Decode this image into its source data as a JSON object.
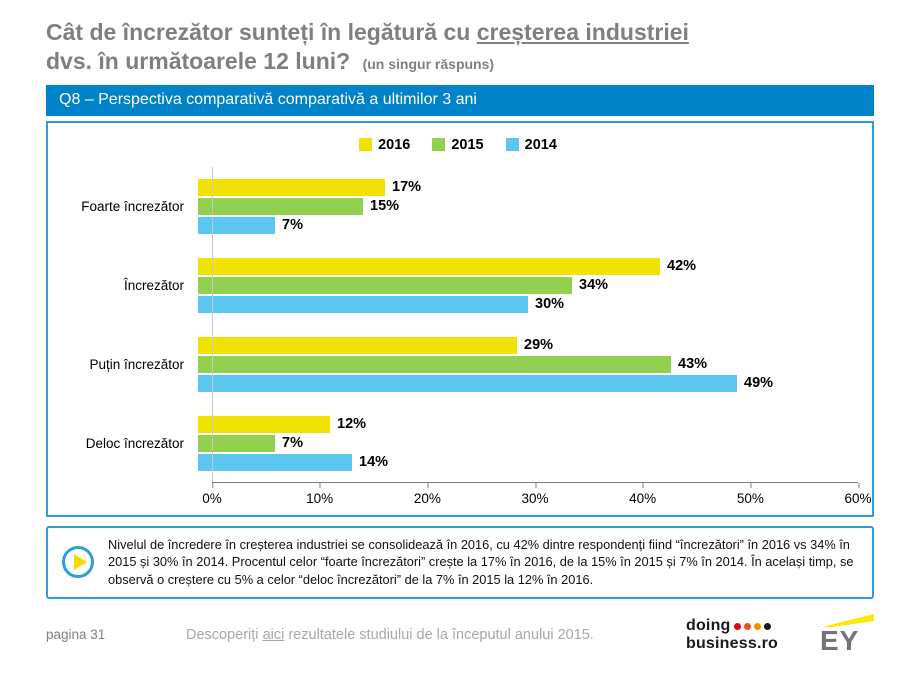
{
  "header": {
    "title_part1": "Cât de încrezător sunteți în legătură cu ",
    "title_underlined": "creșterea industriei",
    "title_part2": "dvs. în următoarele 12 luni?",
    "title_note": "(un singur răspuns)",
    "banner": "Q8 – Perspectiva comparativă comparativă a ultimilor 3 ani"
  },
  "chart_data": {
    "type": "bar",
    "orientation": "horizontal",
    "title": "",
    "categories": [
      "Foarte încrezător",
      "Încrezător",
      "Puțin încrezător",
      "Deloc încrezător"
    ],
    "series": [
      {
        "name": "2016",
        "color": "#F2E203",
        "values": [
          17,
          42,
          29,
          12
        ]
      },
      {
        "name": "2015",
        "color": "#92D050",
        "values": [
          15,
          34,
          43,
          7
        ]
      },
      {
        "name": "2014",
        "color": "#5BC6F0",
        "values": [
          7,
          30,
          49,
          14
        ]
      }
    ],
    "x_ticks": [
      "0%",
      "10%",
      "20%",
      "30%",
      "40%",
      "50%",
      "60%"
    ],
    "xlim": [
      0,
      60
    ],
    "value_suffix": "%",
    "legend_position": "top",
    "grid": false
  },
  "callout": {
    "text": "Nivelul de încredere în creșterea industriei se consolidează în 2016, cu 42% dintre respondenți fiind “încrezători” în 2016 vs 34% în 2015 și 30% în 2014. Procentul celor “foarte încrezători” crește la 17% în 2016, de la 15% în 2015 și 7% în 2014. În același timp, se observă o creștere cu 5% a celor “deloc încrezători” de la 7% în 2015 la 12% în 2016."
  },
  "footer": {
    "page": "pagina 31",
    "link_before": "Descoperiți ",
    "link_text": "aici",
    "link_after": " rezultatele studiului de la începutul anului 2015.",
    "logo_doing": {
      "line1": "doing",
      "line2": "business.ro",
      "dot_colors": [
        "#E2001A",
        "#E94E1B",
        "#F39200",
        "#1A1A1A"
      ]
    },
    "logo_ey": "EY"
  },
  "colors": {
    "accent_blue": "#0082C8",
    "box_border_blue": "#2E9ED9",
    "title_gray": "#7F7F7F"
  }
}
